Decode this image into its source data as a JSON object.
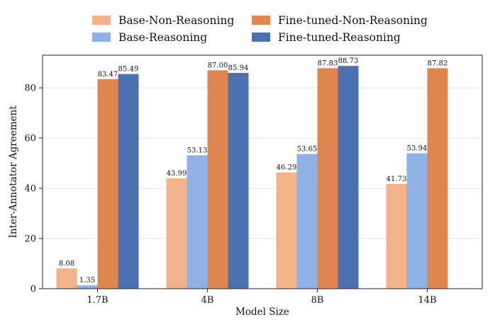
{
  "chart_data": {
    "type": "bar",
    "xlabel": "Model Size",
    "ylabel": "Inter-Annotator Agreement",
    "ylim": [
      0,
      93
    ],
    "yticks": [
      0,
      20,
      40,
      60,
      80
    ],
    "grid": "horizontal",
    "legend_placement": "top-center, outside plot, 2 columns",
    "categories": [
      "1.7B",
      "4B",
      "8B",
      "14B"
    ],
    "series": [
      {
        "name": "Base-Non-Reasoning",
        "color": "#f2b38a",
        "values": [
          8.08,
          43.99,
          46.29,
          41.73
        ],
        "labels": [
          "8.08",
          "43.99",
          "46.29",
          "41.73"
        ]
      },
      {
        "name": "Base-Reasoning",
        "color": "#8eb1e6",
        "values": [
          1.35,
          53.13,
          53.65,
          53.94
        ],
        "labels": [
          "1.35",
          "53.13",
          "53.65",
          "53.94"
        ]
      },
      {
        "name": "Fine-tuned-Non-Reasoning",
        "color": "#df8550",
        "values": [
          83.47,
          87.0,
          87.83,
          87.82
        ],
        "labels": [
          "83.47",
          "87.00",
          "87.83",
          "87.82"
        ]
      },
      {
        "name": "Fine-tuned-Reasoning",
        "color": "#4b71b1",
        "values": [
          85.49,
          85.94,
          88.73,
          null
        ],
        "labels": [
          "85.49",
          "85.94",
          "88.73",
          ""
        ]
      }
    ]
  }
}
